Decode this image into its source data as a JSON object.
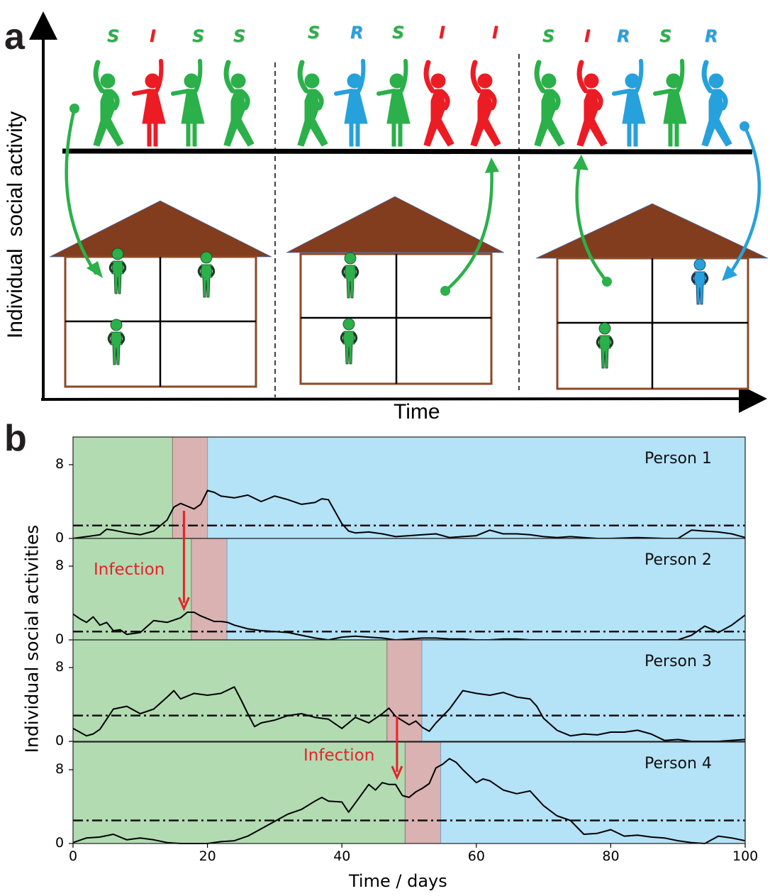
{
  "panel_a": {
    "label": "a",
    "y_axis_label": "Individual  social activity",
    "x_axis_label": "Time",
    "groups": [
      {
        "states": [
          "S",
          "I",
          "S",
          "S"
        ]
      },
      {
        "states": [
          "S",
          "R",
          "S",
          "I",
          "I"
        ]
      },
      {
        "states": [
          "S",
          "I",
          "R",
          "S",
          "R"
        ]
      }
    ],
    "houses": [
      {
        "rooms": [
          "S",
          "S",
          "S",
          ""
        ]
      },
      {
        "rooms": [
          "S",
          "",
          "S",
          ""
        ]
      },
      {
        "rooms": [
          "",
          "R",
          "S",
          ""
        ]
      }
    ],
    "colors": {
      "S": "#2bb04a",
      "I": "#ec1c24",
      "R": "#27a1db",
      "roof": "#823d1e",
      "wall": "#8b4a26"
    }
  },
  "panel_b": {
    "label": "b",
    "y_axis_label": "Individual social activities",
    "x_axis_label": "Time / days",
    "x_ticks": [
      "0",
      "20",
      "40",
      "60",
      "80",
      "100"
    ],
    "y_ticks": [
      "0",
      "8"
    ],
    "annotation": "Infection",
    "colors": {
      "susceptible_bg": "#b2dbb2",
      "infected_bg": "#dab2b2",
      "recovered_bg": "#b4e2f7",
      "arrow": "#e8222a"
    }
  },
  "chart_data": {
    "type": "line",
    "title": "",
    "xlabel": "Time / days",
    "ylabel": "Individual social activities",
    "xlim": [
      0,
      100
    ],
    "ylim": [
      0,
      11
    ],
    "grid": false,
    "series": [
      {
        "name": "Person 1",
        "threshold": 1.4,
        "susceptible": [
          0,
          14.8
        ],
        "infected": [
          14.8,
          20.0
        ],
        "recovered": [
          20.0,
          100
        ],
        "x": [
          0,
          2,
          4,
          5,
          6,
          8,
          10,
          12,
          14,
          15,
          16,
          17,
          18,
          19,
          20,
          21,
          22,
          24,
          26,
          28,
          30,
          32,
          34,
          36,
          37,
          38,
          39,
          40,
          41,
          42,
          44,
          46,
          48,
          50,
          52,
          54,
          56,
          58,
          60,
          62,
          64,
          66,
          68,
          70,
          72,
          74,
          76,
          78,
          80,
          84,
          88,
          90,
          92,
          94,
          96,
          98,
          100
        ],
        "values": [
          0,
          0.2,
          0.4,
          1.0,
          0.9,
          0.6,
          0.4,
          0.8,
          2.0,
          3.4,
          3.8,
          3.5,
          3.2,
          3.7,
          5.2,
          5.0,
          4.6,
          4.4,
          4.7,
          4.0,
          4.6,
          4.2,
          3.7,
          3.9,
          4.3,
          4.2,
          2.9,
          1.6,
          0.8,
          0.6,
          0.7,
          0.5,
          0.2,
          0.3,
          0.4,
          0.5,
          0.1,
          0.2,
          0.3,
          0.9,
          0.5,
          0.5,
          0.4,
          0.2,
          0.1,
          0.2,
          0.1,
          0.0,
          0.0,
          0.1,
          0.0,
          0.0,
          0.9,
          0.8,
          0.7,
          0.5,
          0.1
        ]
      },
      {
        "name": "Person 2",
        "threshold": 0.9,
        "susceptible": [
          0,
          17.6
        ],
        "infected": [
          17.6,
          22.9
        ],
        "recovered": [
          22.9,
          100
        ],
        "x": [
          0,
          1,
          2,
          3,
          4,
          5,
          6,
          7,
          8,
          10,
          12,
          14,
          16,
          17,
          18,
          19,
          20,
          21,
          22,
          23,
          24,
          26,
          28,
          30,
          32,
          34,
          36,
          38,
          40,
          42,
          44,
          46,
          48,
          50,
          52,
          54,
          56,
          58,
          60,
          62,
          64,
          66,
          68,
          70,
          72,
          74,
          76,
          78,
          80,
          82,
          84,
          86,
          88,
          90,
          92,
          94,
          96,
          98,
          100
        ],
        "values": [
          2.8,
          2.3,
          1.9,
          2.5,
          1.6,
          1.9,
          1.0,
          1.1,
          0.6,
          0.8,
          2.1,
          1.9,
          2.4,
          3.0,
          3.0,
          2.6,
          2.3,
          2.0,
          2.0,
          1.9,
          1.6,
          1.2,
          1.0,
          0.9,
          0.8,
          0.5,
          0.2,
          0.0,
          0.3,
          0.4,
          0.3,
          0.2,
          0.0,
          0.1,
          0.2,
          0.2,
          0.1,
          0.1,
          0.0,
          0.0,
          0.1,
          0.1,
          0.0,
          0.0,
          0.0,
          0.0,
          0.0,
          0.0,
          0.0,
          0.0,
          0.0,
          0.0,
          0.0,
          0.0,
          0.5,
          1.5,
          0.8,
          1.6,
          2.7
        ]
      },
      {
        "name": "Person 3",
        "threshold": 2.8,
        "susceptible": [
          0,
          46.7
        ],
        "infected": [
          46.7,
          51.9
        ],
        "recovered": [
          51.9,
          100
        ],
        "x": [
          0,
          2,
          3,
          4,
          6,
          8,
          10,
          12,
          14,
          15,
          16,
          18,
          20,
          22,
          24,
          25,
          26,
          27,
          28,
          30,
          32,
          34,
          36,
          38,
          40,
          42,
          44,
          46,
          47,
          48,
          50,
          51,
          52,
          53,
          54,
          56,
          58,
          60,
          62,
          64,
          66,
          68,
          69,
          70,
          72,
          74,
          76,
          78,
          80,
          82,
          84,
          86,
          88,
          90,
          92,
          96,
          100
        ],
        "values": [
          1.4,
          0.6,
          0.8,
          1.3,
          3.5,
          3.8,
          3.0,
          3.5,
          4.8,
          5.5,
          4.6,
          5.2,
          5.0,
          5.2,
          5.9,
          4.5,
          3.0,
          1.6,
          2.0,
          2.3,
          2.8,
          3.0,
          2.6,
          2.4,
          1.4,
          2.6,
          2.0,
          3.0,
          3.6,
          2.7,
          1.8,
          2.2,
          1.5,
          1.1,
          2.0,
          3.5,
          5.5,
          5.2,
          5.0,
          5.3,
          4.8,
          4.6,
          3.8,
          2.5,
          1.2,
          0.6,
          0.8,
          0.7,
          1.0,
          1.0,
          1.2,
          0.8,
          0.1,
          0.2,
          0.0,
          0.0,
          0.2
        ]
      },
      {
        "name": "Person 4",
        "threshold": 2.5,
        "susceptible": [
          0,
          49.4
        ],
        "infected": [
          49.4,
          54.7
        ],
        "recovered": [
          54.7,
          100
        ],
        "x": [
          0,
          2,
          4,
          6,
          8,
          10,
          12,
          14,
          16,
          18,
          20,
          22,
          24,
          26,
          28,
          30,
          32,
          34,
          36,
          37,
          38,
          40,
          41,
          42,
          44,
          45,
          46,
          47,
          48,
          49,
          50,
          51,
          52,
          53,
          54,
          55,
          56,
          57,
          58,
          60,
          61,
          62,
          64,
          66,
          68,
          70,
          72,
          74,
          76,
          78,
          80,
          82,
          84,
          86,
          88,
          90,
          92,
          94,
          96,
          98,
          100
        ],
        "values": [
          0.1,
          0.6,
          0.7,
          1.0,
          0.4,
          0.6,
          0.4,
          0.1,
          0.0,
          0.0,
          0.0,
          0.2,
          0.3,
          0.8,
          1.6,
          2.4,
          3.2,
          3.7,
          4.6,
          5.0,
          4.6,
          4.5,
          3.4,
          4.4,
          6.4,
          5.8,
          6.6,
          6.4,
          6.4,
          5.2,
          5.0,
          5.6,
          6.0,
          6.5,
          8.2,
          8.6,
          9.2,
          8.8,
          8.0,
          6.6,
          7.0,
          6.8,
          5.8,
          5.4,
          5.7,
          4.1,
          3.0,
          2.5,
          1.0,
          1.1,
          1.5,
          0.8,
          0.9,
          0.7,
          0.6,
          0.3,
          0.1,
          0.0,
          0.8,
          0.6,
          0.3
        ]
      }
    ],
    "annotations": [
      {
        "text": "Infection",
        "from": "Person 1",
        "to": "Person 2",
        "x": 16.5
      },
      {
        "text": "Infection",
        "from": "Person 3",
        "to": "Person 4",
        "x": 48.2
      }
    ]
  }
}
